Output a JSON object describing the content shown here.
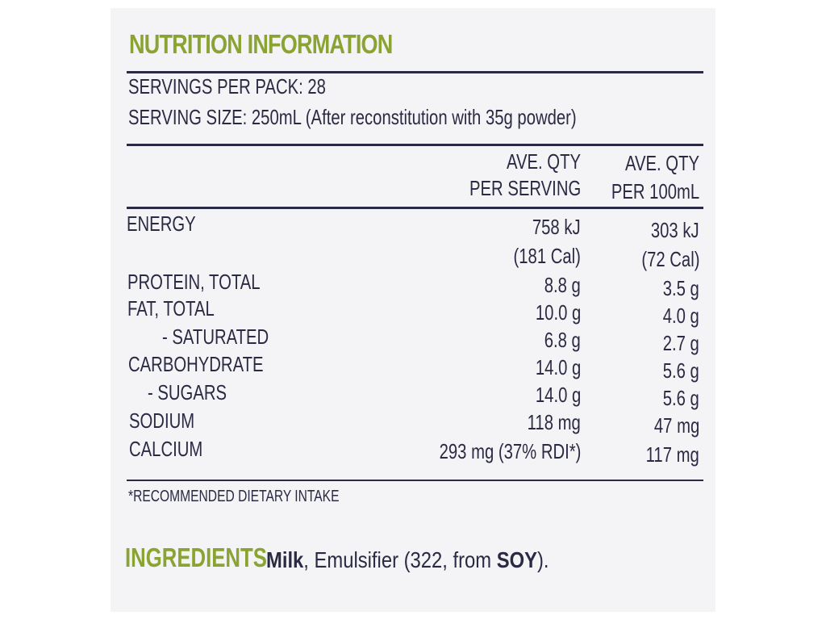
{
  "title": "NUTRITION INFORMATION",
  "servings_per_pack": "SERVINGS PER PACK: 28",
  "serving_size": "SERVING SIZE: 250mL (After reconstitution with 35g powder)",
  "columns": {
    "per_serving_line1": "AVE. QTY",
    "per_serving_line2": "PER SERVING",
    "per_100_line1": "AVE. QTY",
    "per_100_line2": "PER 100mL"
  },
  "energy": {
    "name": "ENERGY",
    "serving_kj": "758 kJ",
    "serving_cal": "(181 Cal)",
    "per100_kj": "303 kJ",
    "per100_cal": "(72 Cal)"
  },
  "rows": [
    {
      "name": "PROTEIN, TOTAL",
      "serving": "8.8 g",
      "per100": "3.5 g"
    },
    {
      "name": "FAT, TOTAL",
      "serving": "10.0 g",
      "per100": "4.0 g"
    },
    {
      "name": "- SATURATED",
      "serving": "6.8 g",
      "per100": "2.7 g"
    },
    {
      "name": "CARBOHYDRATE",
      "serving": "14.0 g",
      "per100": "5.6 g"
    },
    {
      "name": "- SUGARS",
      "serving": "14.0 g",
      "per100": "5.6 g"
    },
    {
      "name": "SODIUM",
      "serving": "118 mg",
      "per100": "47 mg"
    },
    {
      "name": "CALCIUM",
      "serving": "293 mg (37% RDI*)",
      "per100": "117 mg"
    }
  ],
  "footnote": "*RECOMMENDED DIETARY INTAKE",
  "ingredients": {
    "label": "INGREDIENTS",
    "milk": "Milk",
    "middle": ", Emulsifier (322, from ",
    "soy": "SOY",
    "end": ")."
  },
  "colors": {
    "accent_green": "#8aa333",
    "text_navy": "#2b2a44",
    "panel_bg": "#f4f4f6"
  }
}
